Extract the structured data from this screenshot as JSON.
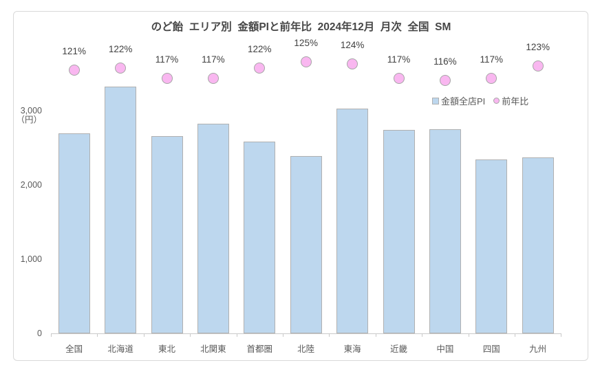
{
  "chart_data": {
    "type": "combo-bar-scatter",
    "title": "のど飴  エリア別  金額PIと前年比  2024年12月  月次  全国  SM",
    "unit_label": "（円）",
    "categories": [
      "全国",
      "北海道",
      "東北",
      "北関東",
      "首都圏",
      "北陸",
      "東海",
      "近畿",
      "中国",
      "四国",
      "九州"
    ],
    "series": [
      {
        "name": "金額全店PI",
        "type": "bar",
        "values": [
          2690,
          3320,
          2660,
          2820,
          2580,
          2390,
          3030,
          2740,
          2750,
          2340,
          2370
        ]
      },
      {
        "name": "前年比",
        "type": "scatter",
        "values_pct": [
          121,
          122,
          117,
          117,
          122,
          125,
          124,
          117,
          116,
          117,
          123
        ],
        "labels": [
          "121%",
          "122%",
          "117%",
          "117%",
          "122%",
          "125%",
          "124%",
          "117%",
          "116%",
          "117%",
          "123%"
        ]
      }
    ],
    "yticks": [
      {
        "value": 0,
        "label": "0"
      },
      {
        "value": 1000,
        "label": "1,000"
      },
      {
        "value": 2000,
        "label": "2,000"
      },
      {
        "value": 3000,
        "label": "3,000"
      }
    ],
    "ylim": [
      0,
      3000
    ],
    "grid": false,
    "legend": [
      "金額全店PI",
      "前年比"
    ],
    "legend_position": "inside-upper-right"
  },
  "colors": {
    "bar_fill": "#BDD7EE",
    "bar_border": "#B0B0B0",
    "marker_fill": "#F9B7F0",
    "marker_border": "#A6A6A6",
    "axis_line": "#C9C9C9",
    "frame_border": "#D9D9D9",
    "text_muted": "#595959",
    "text_dark": "#404040"
  }
}
